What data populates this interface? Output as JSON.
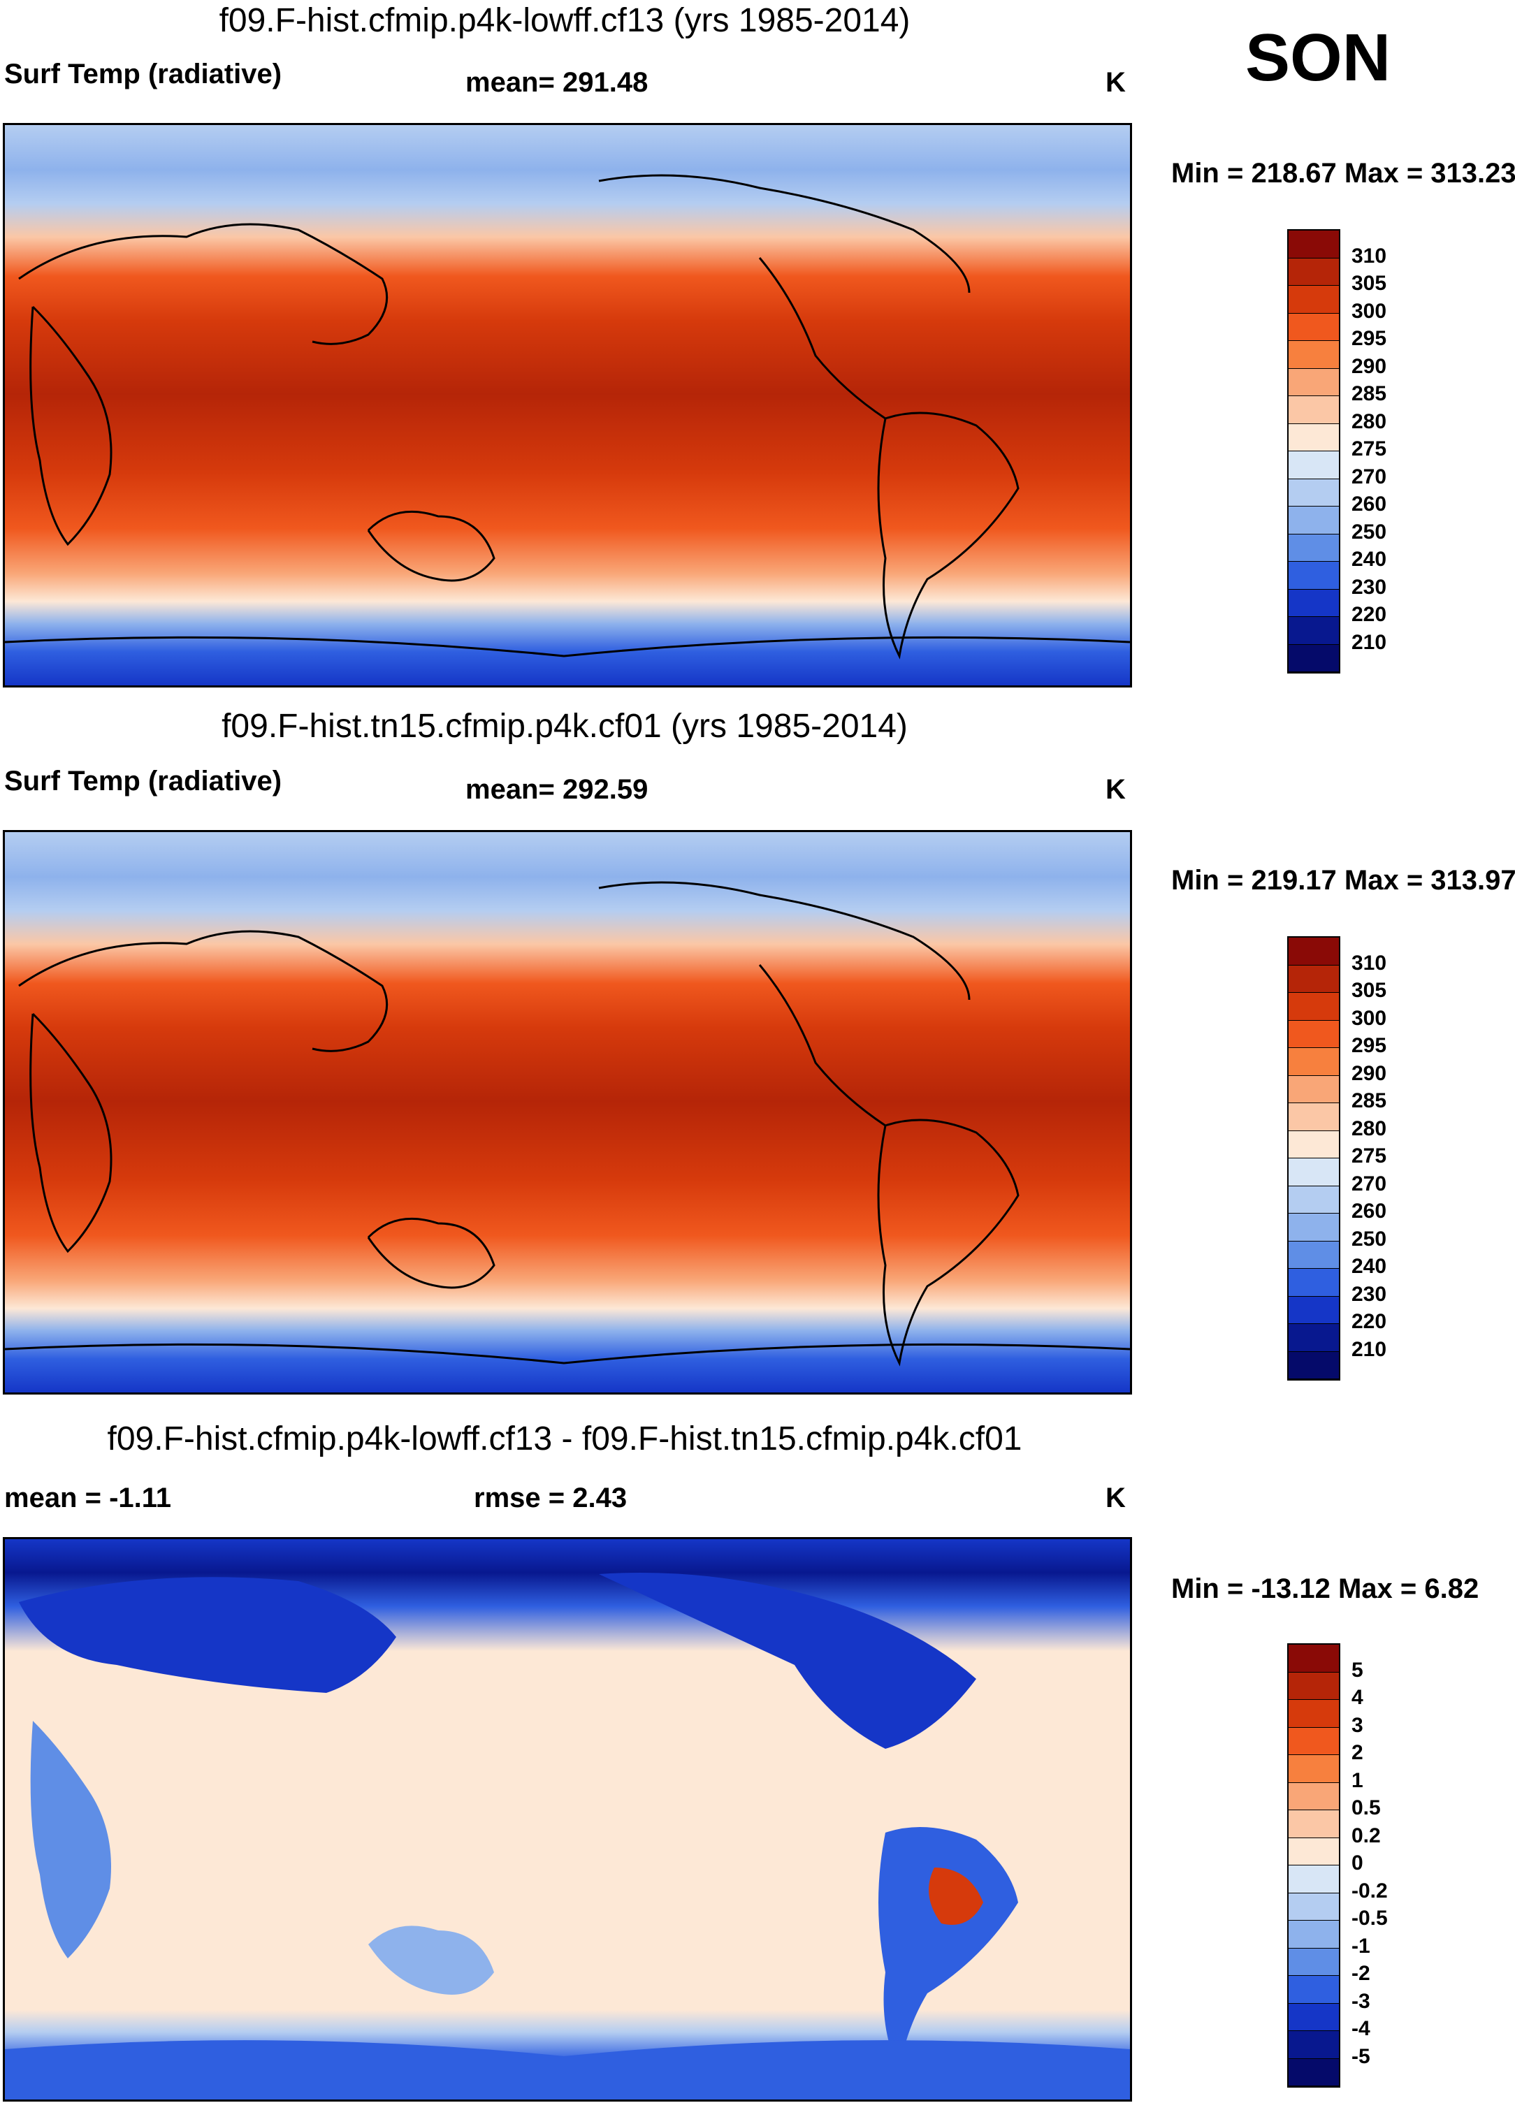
{
  "season": "SON",
  "panels": [
    {
      "title": "f09.F-hist.cfmip.p4k-lowff.cf13 (yrs 1985-2014)",
      "left_label": "Surf Temp (radiative)",
      "center_label": "mean= 291.48",
      "units": "K",
      "minmax": "Min = 218.67 Max = 313.23",
      "colorbar_labels": [
        "310",
        "305",
        "300",
        "295",
        "290",
        "285",
        "280",
        "275",
        "270",
        "260",
        "250",
        "240",
        "230",
        "220",
        "210"
      ],
      "colorbar_colors": [
        "#8a0a06",
        "#b52508",
        "#d63a0c",
        "#f0581e",
        "#f7803e",
        "#f9a677",
        "#fbc7a6",
        "#fde8d6",
        "#d8e6f6",
        "#b4cdf1",
        "#8eb2ec",
        "#5f8ee6",
        "#2f5fe0",
        "#1536c7",
        "#08188f",
        "#050a6a"
      ]
    },
    {
      "title": "f09.F-hist.tn15.cfmip.p4k.cf01 (yrs 1985-2014)",
      "left_label": "Surf Temp (radiative)",
      "center_label": "mean= 292.59",
      "units": "K",
      "minmax": "Min = 219.17 Max = 313.97",
      "colorbar_labels": [
        "310",
        "305",
        "300",
        "295",
        "290",
        "285",
        "280",
        "275",
        "270",
        "260",
        "250",
        "240",
        "230",
        "220",
        "210"
      ],
      "colorbar_colors": [
        "#8a0a06",
        "#b52508",
        "#d63a0c",
        "#f0581e",
        "#f7803e",
        "#f9a677",
        "#fbc7a6",
        "#fde8d6",
        "#d8e6f6",
        "#b4cdf1",
        "#8eb2ec",
        "#5f8ee6",
        "#2f5fe0",
        "#1536c7",
        "#08188f",
        "#050a6a"
      ]
    },
    {
      "title": "f09.F-hist.cfmip.p4k-lowff.cf13 - f09.F-hist.tn15.cfmip.p4k.cf01",
      "left_label": "mean =  -1.11",
      "center_label": "rmse =   2.43",
      "units": "K",
      "minmax": "Min = -13.12 Max =   6.82",
      "colorbar_labels": [
        "5",
        "4",
        "3",
        "2",
        "1",
        "0.5",
        "0.2",
        "0",
        "-0.2",
        "-0.5",
        "-1",
        "-2",
        "-3",
        "-4",
        "-5"
      ],
      "colorbar_colors": [
        "#8a0a06",
        "#b52508",
        "#d63a0c",
        "#f0581e",
        "#f7803e",
        "#f9a677",
        "#fbc7a6",
        "#fde8d6",
        "#d8e6f6",
        "#b4cdf1",
        "#8eb2ec",
        "#5f8ee6",
        "#2f5fe0",
        "#1536c7",
        "#08188f",
        "#050a6a"
      ]
    }
  ]
}
